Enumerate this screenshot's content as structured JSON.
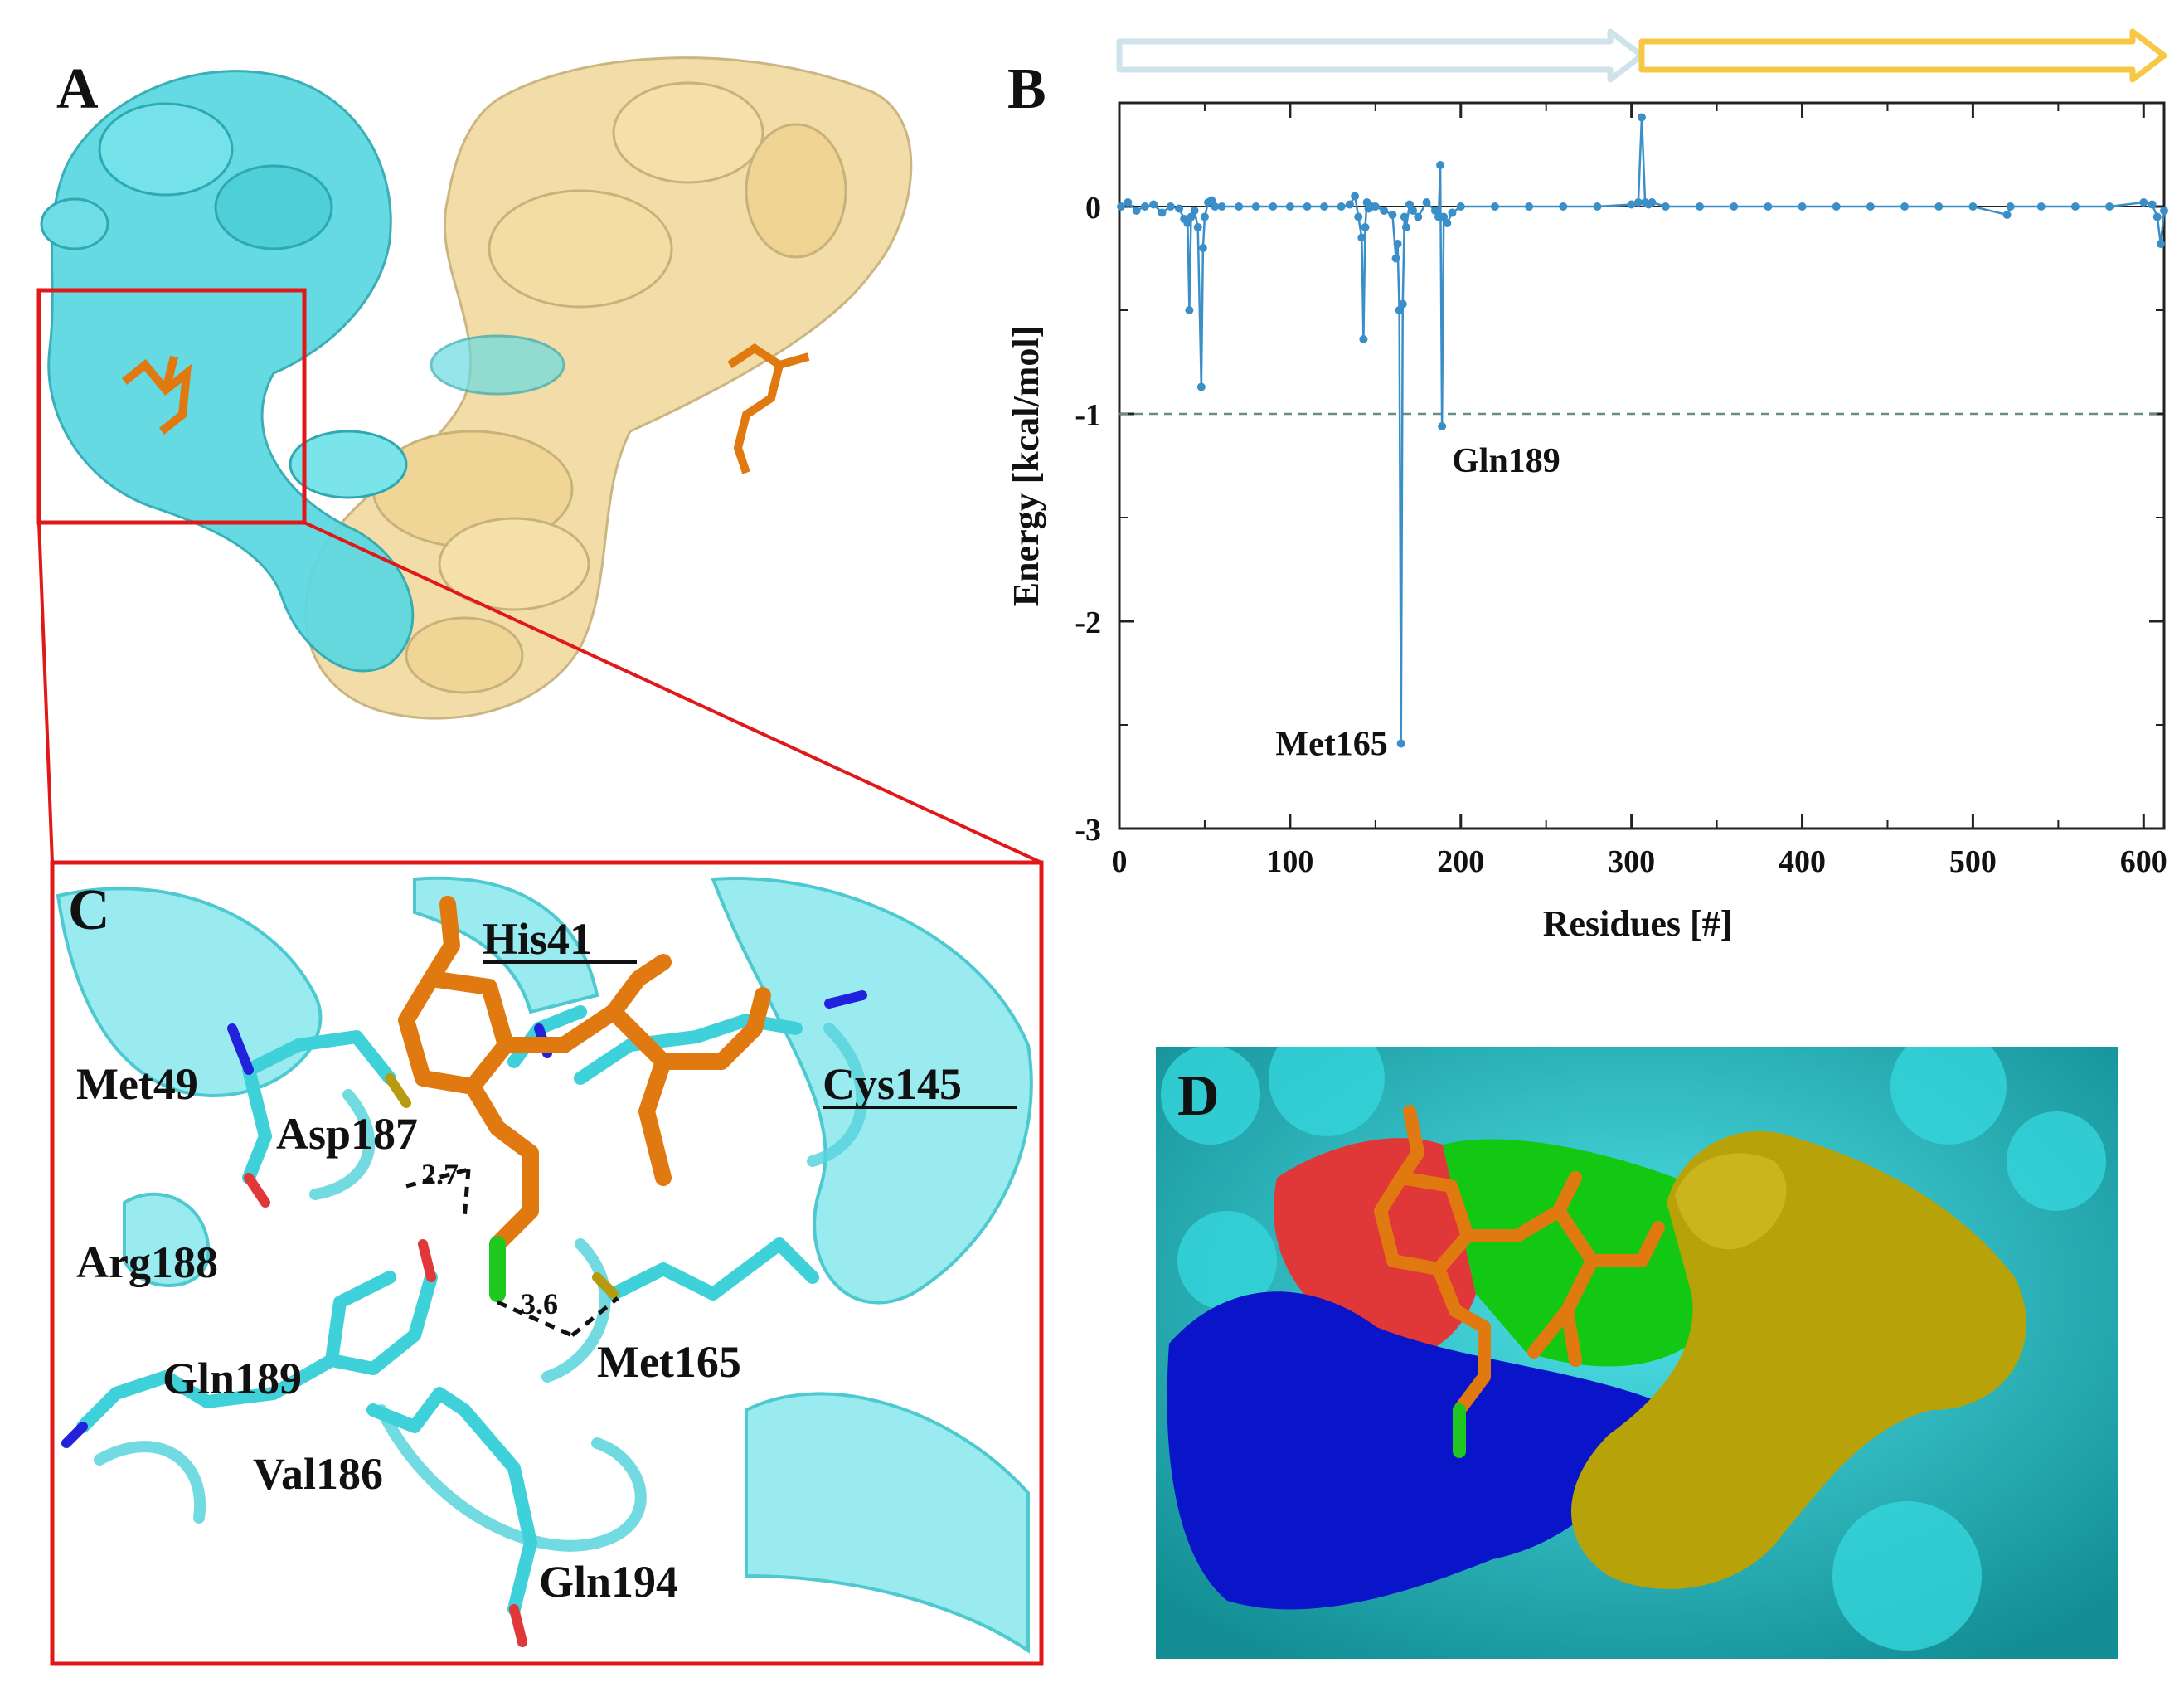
{
  "panels": {
    "a": "A",
    "b": "B",
    "c": "C",
    "d": "D"
  },
  "chart_data": {
    "type": "line",
    "xlabel": "Residues [#]",
    "ylabel": "Energy [kcal/mol]",
    "xlim": [
      0,
      612
    ],
    "ylim": [
      -3,
      0.5
    ],
    "xticks": [
      0,
      100,
      200,
      300,
      400,
      500,
      600
    ],
    "yticks": [
      -3,
      -2,
      -1,
      0
    ],
    "reference_line": -1,
    "chain_bars": [
      {
        "start": 0,
        "end": 306,
        "color": "#cfe3ea"
      },
      {
        "start": 306,
        "end": 612,
        "color": "#f7c843"
      }
    ],
    "annotations": [
      {
        "text": "Gln189",
        "x": 189,
        "y": -1.06
      },
      {
        "text": "Met165",
        "x": 165,
        "y": -2.59
      }
    ],
    "series": [
      {
        "color": "#3a8fc8",
        "x": [
          1,
          5,
          10,
          15,
          20,
          25,
          30,
          35,
          38,
          40,
          41,
          42,
          44,
          46,
          48,
          49,
          50,
          52,
          54,
          56,
          60,
          70,
          80,
          90,
          100,
          110,
          120,
          130,
          135,
          138,
          140,
          142,
          143,
          144,
          145,
          146,
          148,
          150,
          155,
          160,
          162,
          163,
          164,
          165,
          166,
          167,
          168,
          170,
          172,
          175,
          180,
          185,
          187,
          188,
          189,
          190,
          192,
          195,
          200,
          220,
          240,
          260,
          280,
          300,
          304,
          306,
          308,
          310,
          312,
          320,
          340,
          360,
          380,
          400,
          420,
          440,
          460,
          480,
          500,
          520,
          522,
          540,
          560,
          580,
          600,
          605,
          608,
          610,
          612
        ],
        "y": [
          0,
          0.02,
          -0.02,
          0,
          0.01,
          -0.03,
          0,
          -0.01,
          -0.06,
          -0.08,
          -0.5,
          -0.05,
          -0.02,
          -0.1,
          -0.87,
          -0.2,
          -0.05,
          0.02,
          0.03,
          0,
          0,
          0,
          0,
          0,
          0,
          0,
          0,
          0,
          0.01,
          0.05,
          -0.05,
          -0.15,
          -0.64,
          -0.1,
          0.02,
          -0.01,
          0,
          0,
          -0.02,
          -0.04,
          -0.25,
          -0.18,
          -0.5,
          -2.59,
          -0.47,
          -0.05,
          -0.1,
          0.01,
          -0.02,
          -0.05,
          0.02,
          -0.02,
          -0.05,
          0.2,
          -1.06,
          -0.05,
          -0.08,
          -0.03,
          0,
          0,
          0,
          0,
          0,
          0.01,
          0.02,
          0.43,
          0.02,
          0.01,
          0.02,
          0,
          0,
          0,
          0,
          0,
          0,
          0,
          0,
          0,
          0,
          -0.04,
          0,
          0,
          0,
          0,
          0.02,
          0.01,
          -0.05,
          -0.18,
          -0.02
        ]
      }
    ]
  },
  "panel_c_labels": [
    {
      "text": "His41",
      "underline": true
    },
    {
      "text": "Met49",
      "underline": false
    },
    {
      "text": "Asp187",
      "underline": false
    },
    {
      "text": "Cys145",
      "underline": true
    },
    {
      "text": "Arg188",
      "underline": false
    },
    {
      "text": "Gln189",
      "underline": false
    },
    {
      "text": "Met165",
      "underline": false
    },
    {
      "text": "Val186",
      "underline": false
    },
    {
      "text": "Gln194",
      "underline": false
    }
  ],
  "distances": [
    "2.7",
    "3.6"
  ],
  "colors": {
    "chain_a": "#5ad8e0",
    "chain_b": "#f2dba4",
    "ligand": "#e07a10",
    "zoom_box": "#e01818",
    "surface_cyan": "#2fd3d8",
    "surface_blue": "#0a14c8",
    "surface_red": "#e03838",
    "surface_green": "#12c812",
    "surface_olive": "#b7a20a"
  }
}
